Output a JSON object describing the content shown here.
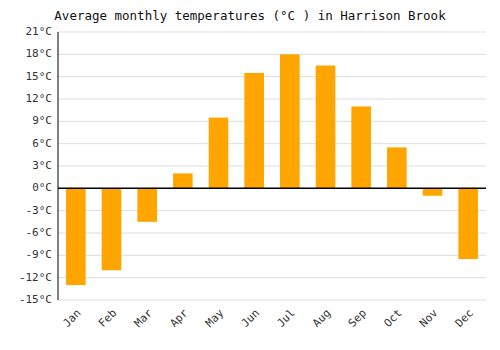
{
  "chart_data": {
    "type": "bar",
    "title": "Average monthly temperatures (°C ) in Harrison Brook",
    "categories": [
      "Jan",
      "Feb",
      "Mar",
      "Apr",
      "May",
      "Jun",
      "Jul",
      "Aug",
      "Sep",
      "Oct",
      "Nov",
      "Dec"
    ],
    "values": [
      -13,
      -11,
      -4.5,
      2,
      9.5,
      15.5,
      18,
      16.5,
      11,
      5.5,
      -1,
      -9.5
    ],
    "color": "#FFA500",
    "ylim": [
      -15,
      21
    ],
    "yticks": [
      {
        "value": -15,
        "label": "-15°C"
      },
      {
        "value": -12,
        "label": "-12°C"
      },
      {
        "value": -9,
        "label": "-9°C"
      },
      {
        "value": -6,
        "label": "-6°C"
      },
      {
        "value": -3,
        "label": "-3°C"
      },
      {
        "value": 0,
        "label": "0°C"
      },
      {
        "value": 3,
        "label": "3°C"
      },
      {
        "value": 6,
        "label": "6°C"
      },
      {
        "value": 9,
        "label": "9°C"
      },
      {
        "value": 12,
        "label": "12°C"
      },
      {
        "value": 15,
        "label": "15°C"
      },
      {
        "value": 18,
        "label": "18°C"
      },
      {
        "value": 21,
        "label": "21°C"
      }
    ],
    "grid": true
  }
}
